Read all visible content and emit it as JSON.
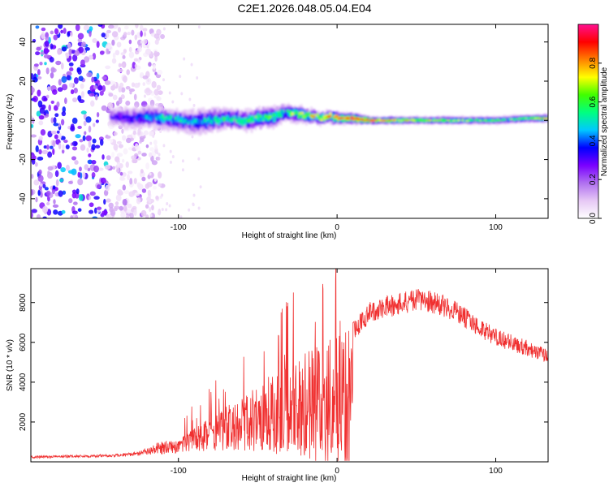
{
  "title": "C2E1.2026.048.05.04.E04",
  "chart_data": [
    {
      "type": "heatmap",
      "name": "spectrogram",
      "xlabel": "Height of straight line (km)",
      "ylabel": "Frequency (Hz)",
      "xlim": [
        -193,
        133
      ],
      "ylim": [
        -50,
        49
      ],
      "xticks": [
        -100,
        0,
        100
      ],
      "xtick_labels": [
        "-100",
        "0",
        "100"
      ],
      "yticks": [
        -40,
        -20,
        0,
        20,
        40
      ],
      "ytick_labels": [
        "-40",
        "-20",
        "0",
        "20",
        "40"
      ],
      "colorbar": {
        "label": "Normalized spectral amplitude",
        "range": [
          0,
          1
        ],
        "ticks": [
          0.0,
          0.2,
          0.4,
          0.6,
          0.8
        ],
        "tick_labels": [
          "0.0",
          "0.2",
          "0.4",
          "0.6",
          "0.8"
        ],
        "colors": [
          "#ffffff",
          "#e6c8f5",
          "#b070f0",
          "#7a00ff",
          "#0000ff",
          "#00c8ff",
          "#00ff80",
          "#40ff00",
          "#ffff00",
          "#ff8000",
          "#ff0000",
          "#ff1090"
        ]
      },
      "ridge": {
        "x": [
          -143,
          -130,
          -120,
          -110,
          -100,
          -90,
          -80,
          -70,
          -60,
          -50,
          -40,
          -33,
          -25,
          -15,
          -10,
          -5,
          0,
          10,
          20,
          40,
          60,
          80,
          100,
          120,
          133
        ],
        "center_hz": [
          2,
          1,
          2,
          1,
          0,
          -1,
          0,
          1,
          0,
          1,
          2,
          4,
          3,
          2,
          1,
          2,
          1,
          1,
          0,
          0,
          0,
          0,
          0,
          1,
          1
        ],
        "spread_hz": [
          4,
          5,
          5,
          5,
          5,
          6,
          6,
          5,
          5,
          5,
          5,
          4,
          4,
          3,
          3,
          3,
          3,
          3,
          2,
          2,
          2,
          2,
          2,
          2,
          2
        ],
        "peak_amplitude": [
          0.3,
          0.35,
          0.45,
          0.5,
          0.5,
          0.45,
          0.5,
          0.55,
          0.55,
          0.6,
          0.6,
          0.55,
          0.7,
          0.75,
          0.75,
          0.8,
          0.85,
          0.95,
          0.9,
          0.75,
          0.7,
          0.65,
          0.6,
          0.65,
          0.8
        ]
      },
      "noise_region": {
        "x_range": [
          -193,
          -125
        ],
        "amplitude": 0.15
      }
    },
    {
      "type": "line",
      "name": "snr",
      "xlabel": "Height of straight line (km)",
      "ylabel": "SNR (10 * v/v)",
      "xlim": [
        -193,
        133
      ],
      "ylim": [
        0,
        9700
      ],
      "xticks": [
        -100,
        0,
        100
      ],
      "xtick_labels": [
        "-100",
        "0",
        "100"
      ],
      "yticks": [
        2000,
        4000,
        6000,
        8000
      ],
      "ytick_labels": [
        "2000",
        "4000",
        "6000",
        "8000"
      ],
      "color": "#f03030",
      "envelope": {
        "x": [
          -193,
          -160,
          -140,
          -125,
          -115,
          -100,
          -90,
          -80,
          -70,
          -60,
          -50,
          -40,
          -30,
          -20,
          -10,
          0,
          10,
          20,
          30,
          40,
          50,
          60,
          70,
          80,
          90,
          100,
          110,
          120,
          133
        ],
        "y": [
          300,
          350,
          400,
          500,
          900,
          1300,
          1700,
          2200,
          2800,
          3300,
          3900,
          4500,
          5000,
          5500,
          5900,
          6300,
          7000,
          8000,
          8300,
          8500,
          8700,
          8600,
          8300,
          7800,
          7200,
          6700,
          6400,
          6100,
          5700
        ]
      }
    }
  ]
}
